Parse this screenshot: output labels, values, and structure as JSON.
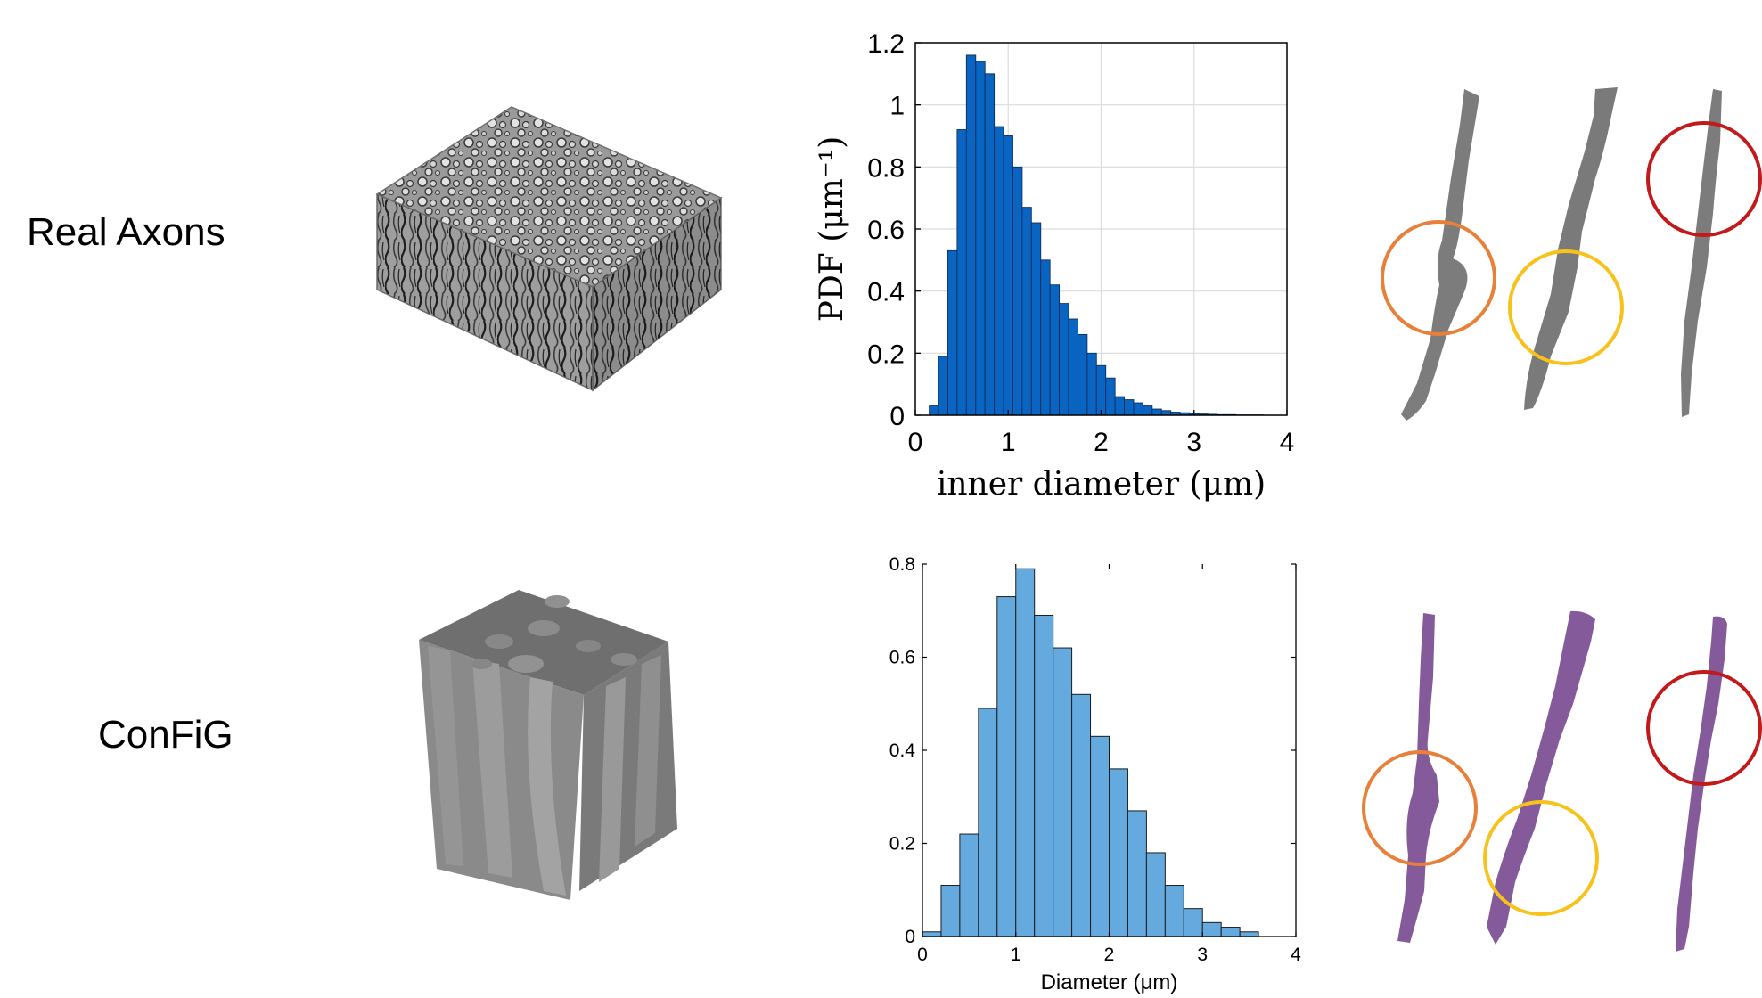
{
  "row_labels": {
    "real": "Real Axons",
    "config": "ConFiG"
  },
  "colors": {
    "real_bar": "#0a64c2",
    "config_bar": "#64aade",
    "real_axon": "#7c7c7c",
    "config_axon": "#845a9a",
    "circle_orange": "#e8803a",
    "circle_yellow": "#f6c21b",
    "circle_red": "#c21a1a"
  },
  "chart_data": [
    {
      "type": "bar",
      "xlabel": "inner diameter (μm)",
      "ylabel": "PDF (μm⁻¹)",
      "xlim": [
        0,
        4
      ],
      "ylim": [
        0,
        1.2
      ],
      "grid": true,
      "bin_width": 0.1,
      "x": [
        0.2,
        0.3,
        0.4,
        0.5,
        0.6,
        0.7,
        0.8,
        0.9,
        1.0,
        1.1,
        1.2,
        1.3,
        1.4,
        1.5,
        1.6,
        1.7,
        1.8,
        1.9,
        2.0,
        2.1,
        2.2,
        2.3,
        2.4,
        2.5,
        2.6,
        2.7,
        2.8,
        2.9,
        3.0,
        3.1,
        3.2,
        3.3,
        3.4,
        3.5,
        3.6,
        3.7
      ],
      "values": [
        0.03,
        0.19,
        0.53,
        0.92,
        1.16,
        1.14,
        1.1,
        0.93,
        0.9,
        0.8,
        0.67,
        0.62,
        0.5,
        0.42,
        0.36,
        0.31,
        0.26,
        0.2,
        0.16,
        0.12,
        0.06,
        0.05,
        0.04,
        0.03,
        0.02,
        0.015,
        0.01,
        0.008,
        0.006,
        0.004,
        0.003,
        0.002,
        0.002,
        0.001,
        0.001,
        0.001
      ],
      "xticks": [
        "0",
        "1",
        "2",
        "3",
        "4"
      ],
      "yticks": [
        "0",
        "0.2",
        "0.4",
        "0.6",
        "0.8",
        "1",
        "1.2"
      ]
    },
    {
      "type": "bar",
      "xlabel": "Diameter (μm)",
      "ylabel": "",
      "xlim": [
        0,
        4
      ],
      "ylim": [
        0,
        0.8
      ],
      "grid": false,
      "bin_width": 0.2,
      "x": [
        0.1,
        0.3,
        0.5,
        0.7,
        0.9,
        1.1,
        1.3,
        1.5,
        1.7,
        1.9,
        2.1,
        2.3,
        2.5,
        2.7,
        2.9,
        3.1,
        3.3,
        3.5
      ],
      "values": [
        0.01,
        0.11,
        0.22,
        0.49,
        0.73,
        0.79,
        0.69,
        0.62,
        0.52,
        0.43,
        0.36,
        0.27,
        0.18,
        0.11,
        0.06,
        0.03,
        0.02,
        0.01
      ],
      "xticks": [
        "0",
        "1",
        "2",
        "3",
        "4"
      ],
      "yticks": [
        "0",
        "0.2",
        "0.4",
        "0.6",
        "0.8"
      ]
    }
  ]
}
